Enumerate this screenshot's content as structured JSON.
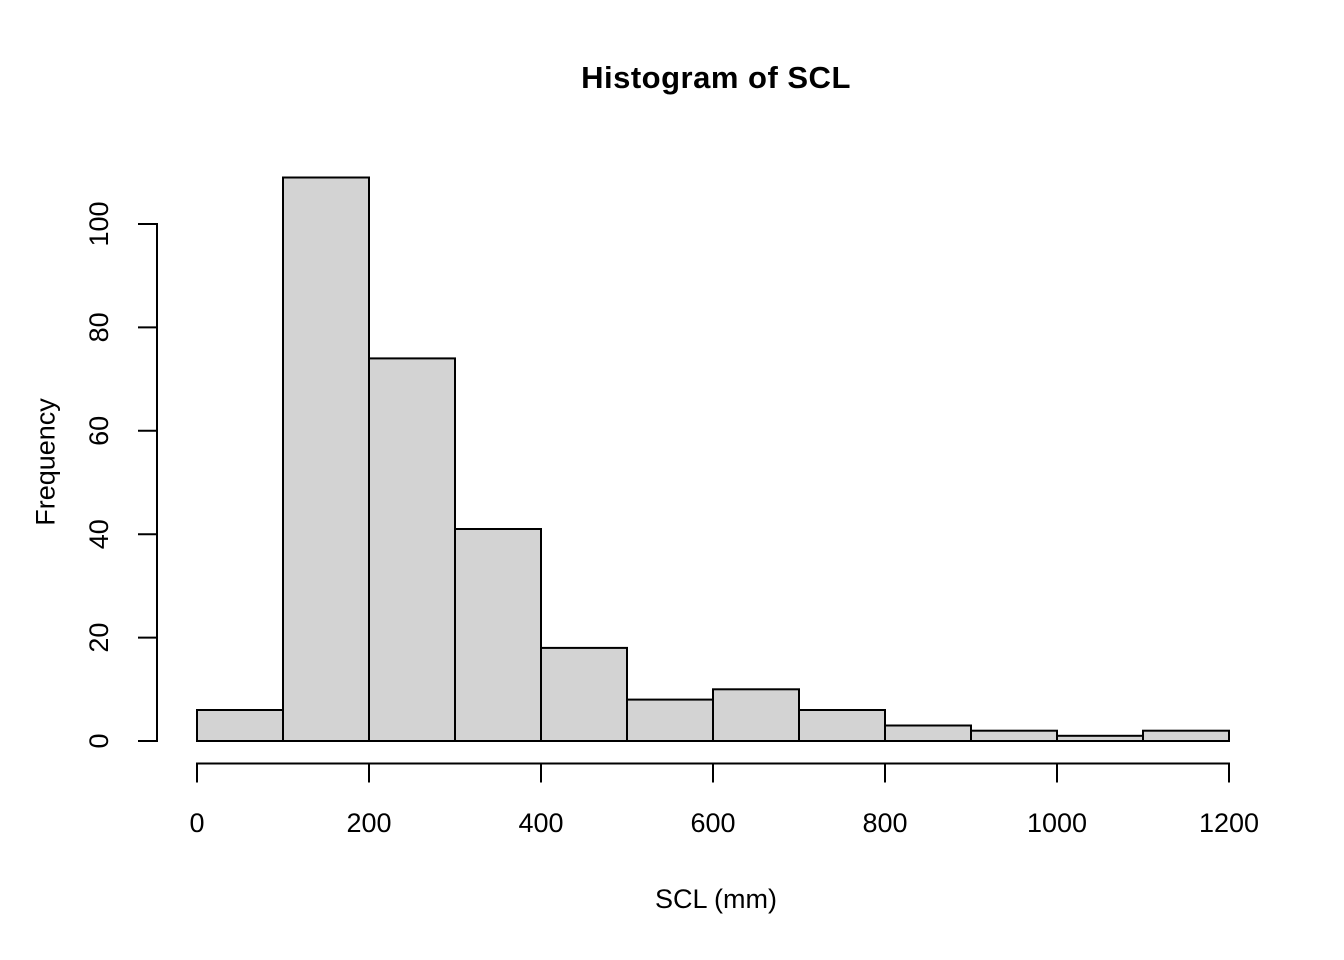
{
  "figure": {
    "background": "#ffffff",
    "text_color": "#000000"
  },
  "chart_data": {
    "type": "bar",
    "subtype": "histogram",
    "title": "Histogram of SCL",
    "xlabel": "SCL (mm)",
    "ylabel": "Frequency",
    "bin_width": 100,
    "bin_edges": [
      0,
      100,
      200,
      300,
      400,
      500,
      600,
      700,
      800,
      900,
      1000,
      1100,
      1200
    ],
    "counts": [
      6,
      109,
      74,
      41,
      18,
      8,
      10,
      6,
      3,
      2,
      1,
      2
    ],
    "x_ticks": [
      0,
      200,
      400,
      600,
      800,
      1000,
      1200
    ],
    "y_ticks": [
      0,
      20,
      40,
      60,
      80,
      100
    ],
    "xlim": [
      0,
      1200
    ],
    "ylim": [
      0,
      109
    ],
    "grid": false,
    "legend_position": "none",
    "bar_fill": "#d3d3d3",
    "bar_stroke": "#000000",
    "axis_color": "#000000"
  }
}
